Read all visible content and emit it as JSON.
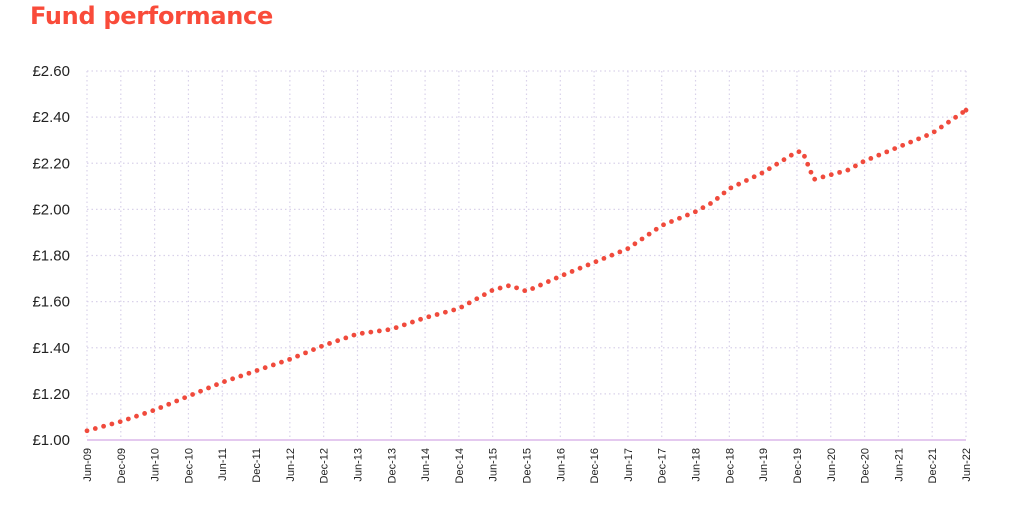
{
  "page": {
    "title": "Fund performance"
  },
  "colors": {
    "title": "#f94b3a",
    "series": "#f04a3c",
    "grid": "#d9d2ea",
    "axis": "#e4c9ef"
  },
  "chart_data": {
    "type": "line",
    "title": "Fund performance",
    "xlabel": "",
    "ylabel": "",
    "grid": true,
    "ylim": [
      1.0,
      2.6
    ],
    "yticks": [
      1.0,
      1.2,
      1.4,
      1.6,
      1.8,
      2.0,
      2.2,
      2.4,
      2.6
    ],
    "ytick_labels": [
      "£1.00",
      "£1.20",
      "£1.40",
      "£1.60",
      "£1.80",
      "£2.00",
      "£2.20",
      "£2.40",
      "£2.60"
    ],
    "xtick_labels": [
      "Jun-09",
      "Dec-09",
      "Jun-10",
      "Dec-10",
      "Jun-11",
      "Dec-11",
      "Jun-12",
      "Dec-12",
      "Jun-13",
      "Dec-13",
      "Jun-14",
      "Dec-14",
      "Jun-15",
      "Dec-15",
      "Jun-16",
      "Dec-16",
      "Jun-17",
      "Dec-17",
      "Jun-18",
      "Dec-18",
      "Jun-19",
      "Dec-19",
      "Jun-20",
      "Dec-20",
      "Jun-21",
      "Dec-21",
      "Jun-22"
    ],
    "series": [
      {
        "style": "dotted",
        "points": [
          [
            "Jun-09",
            1.04
          ],
          [
            "Dec-09",
            1.08
          ],
          [
            "Jun-10",
            1.13
          ],
          [
            "Dec-10",
            1.19
          ],
          [
            "Jun-11",
            1.25
          ],
          [
            "Dec-11",
            1.3
          ],
          [
            "Jun-12",
            1.35
          ],
          [
            "Dec-12",
            1.41
          ],
          [
            "Jun-13",
            1.46
          ],
          [
            "Dec-13",
            1.48
          ],
          [
            "Jun-14",
            1.53
          ],
          [
            "Dec-14",
            1.57
          ],
          [
            "Jun-15",
            1.65
          ],
          [
            "Sep-15",
            1.67
          ],
          [
            "Dec-15",
            1.645
          ],
          [
            "Jun-16",
            1.71
          ],
          [
            "Dec-16",
            1.77
          ],
          [
            "Jun-17",
            1.83
          ],
          [
            "Dec-17",
            1.93
          ],
          [
            "Jun-18",
            1.99
          ],
          [
            "Sep-18",
            2.03
          ],
          [
            "Dec-18",
            2.09
          ],
          [
            "Jun-19",
            2.16
          ],
          [
            "Dec-19",
            2.25
          ],
          [
            "Jan-20",
            2.25
          ],
          [
            "Mar-20",
            2.13
          ],
          [
            "Jun-20",
            2.15
          ],
          [
            "Sep-20",
            2.17
          ],
          [
            "Dec-20",
            2.21
          ],
          [
            "Jun-21",
            2.27
          ],
          [
            "Dec-21",
            2.33
          ],
          [
            "Jun-22",
            2.43
          ]
        ]
      }
    ]
  }
}
